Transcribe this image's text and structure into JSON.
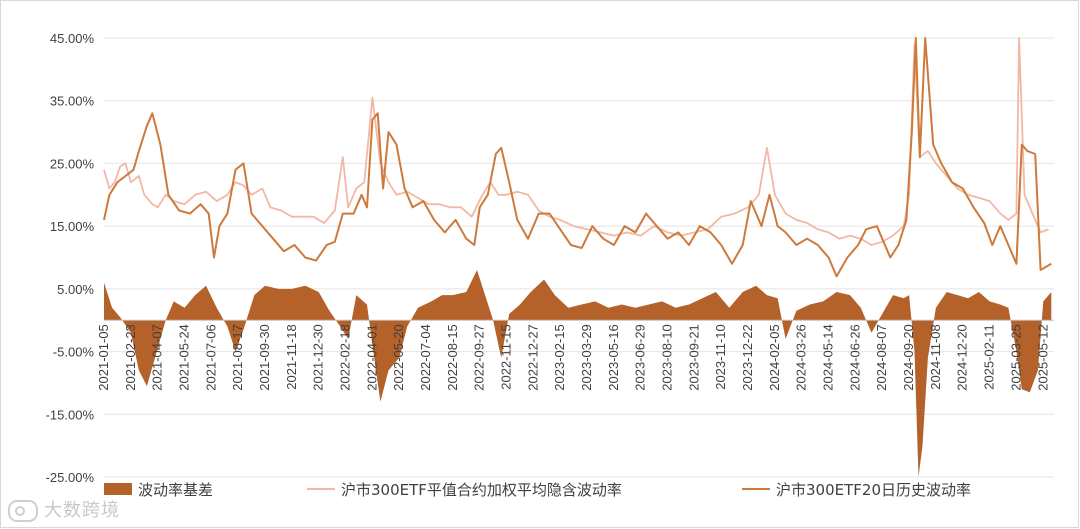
{
  "chart_data": {
    "type": "bar+line",
    "title": "",
    "xlabel": "",
    "ylabel": "",
    "ylim": [
      -0.25,
      0.45
    ],
    "y_ticks": [
      "45.00%",
      "35.00%",
      "25.00%",
      "15.00%",
      "5.00%",
      "-5.00%",
      "-15.00%",
      "-25.00%"
    ],
    "y_tick_values": [
      0.45,
      0.35,
      0.25,
      0.15,
      0.05,
      -0.05,
      -0.15,
      -0.25
    ],
    "x_tick_labels": [
      "2021-01-05",
      "2021-02-23",
      "2021-04-07",
      "2021-05-24",
      "2021-07-06",
      "2021-08-17",
      "2021-09-30",
      "2021-11-18",
      "2021-12-30",
      "2022-02-18",
      "2022-04-01",
      "2022-05-20",
      "2022-07-04",
      "2022-08-15",
      "2022-09-27",
      "2022-11-15",
      "2022-12-27",
      "2023-02-15",
      "2023-03-29",
      "2023-05-16",
      "2023-06-29",
      "2023-08-10",
      "2023-09-21",
      "2023-11-10",
      "2023-12-22",
      "2024-02-05",
      "2024-03-26",
      "2024-05-14",
      "2024-06-26",
      "2024-08-07",
      "2024-09-20",
      "2024-11-08",
      "2024-12-20",
      "2025-02-11",
      "2025-03-25",
      "2025-05-12"
    ],
    "legend_position": "bottom",
    "grid": "horizontal",
    "series": [
      {
        "name": "波动率基差",
        "kind": "area",
        "color": "#b5612a",
        "points": [
          [
            0,
            0.06
          ],
          [
            0.3,
            0.02
          ],
          [
            0.6,
            0.005
          ],
          [
            1,
            -0.02
          ],
          [
            1.3,
            -0.08
          ],
          [
            1.6,
            -0.105
          ],
          [
            1.9,
            -0.06
          ],
          [
            2.3,
            0.0
          ],
          [
            2.6,
            0.03
          ],
          [
            3.0,
            0.02
          ],
          [
            3.4,
            0.04
          ],
          [
            3.8,
            0.055
          ],
          [
            4.2,
            0.02
          ],
          [
            4.6,
            -0.01
          ],
          [
            4.9,
            -0.05
          ],
          [
            5.2,
            -0.015
          ],
          [
            5.6,
            0.04
          ],
          [
            6.0,
            0.055
          ],
          [
            6.5,
            0.05
          ],
          [
            7.0,
            0.05
          ],
          [
            7.5,
            0.055
          ],
          [
            8.0,
            0.045
          ],
          [
            8.4,
            0.015
          ],
          [
            8.8,
            -0.01
          ],
          [
            9.1,
            -0.03
          ],
          [
            9.4,
            0.04
          ],
          [
            9.8,
            0.025
          ],
          [
            10.0,
            -0.04
          ],
          [
            10.3,
            -0.13
          ],
          [
            10.6,
            -0.08
          ],
          [
            11.0,
            -0.06
          ],
          [
            11.3,
            -0.01
          ],
          [
            11.7,
            0.02
          ],
          [
            12.2,
            0.03
          ],
          [
            12.6,
            0.04
          ],
          [
            13.0,
            0.04
          ],
          [
            13.5,
            0.045
          ],
          [
            13.9,
            0.08
          ],
          [
            14.2,
            0.04
          ],
          [
            14.5,
            0.0
          ],
          [
            14.8,
            -0.06
          ],
          [
            15.1,
            0.01
          ],
          [
            15.5,
            0.025
          ],
          [
            15.9,
            0.045
          ],
          [
            16.4,
            0.065
          ],
          [
            16.8,
            0.04
          ],
          [
            17.3,
            0.02
          ],
          [
            17.8,
            0.025
          ],
          [
            18.3,
            0.03
          ],
          [
            18.8,
            0.02
          ],
          [
            19.3,
            0.025
          ],
          [
            19.8,
            0.02
          ],
          [
            20.3,
            0.025
          ],
          [
            20.8,
            0.03
          ],
          [
            21.3,
            0.02
          ],
          [
            21.8,
            0.025
          ],
          [
            22.3,
            0.035
          ],
          [
            22.8,
            0.045
          ],
          [
            23.3,
            0.02
          ],
          [
            23.8,
            0.045
          ],
          [
            24.3,
            0.055
          ],
          [
            24.7,
            0.04
          ],
          [
            25.1,
            0.035
          ],
          [
            25.4,
            -0.03
          ],
          [
            25.8,
            0.015
          ],
          [
            26.3,
            0.025
          ],
          [
            26.8,
            0.03
          ],
          [
            27.3,
            0.045
          ],
          [
            27.8,
            0.04
          ],
          [
            28.2,
            0.02
          ],
          [
            28.6,
            -0.02
          ],
          [
            29.0,
            0.01
          ],
          [
            29.4,
            0.04
          ],
          [
            29.8,
            0.035
          ],
          [
            30.0,
            0.04
          ],
          [
            30.2,
            -0.05
          ],
          [
            30.35,
            -0.25
          ],
          [
            30.5,
            -0.2
          ],
          [
            30.7,
            -0.06
          ],
          [
            31.0,
            0.02
          ],
          [
            31.4,
            0.045
          ],
          [
            31.8,
            0.04
          ],
          [
            32.2,
            0.035
          ],
          [
            32.6,
            0.045
          ],
          [
            33.0,
            0.03
          ],
          [
            33.4,
            0.025
          ],
          [
            33.7,
            0.02
          ],
          [
            34.0,
            -0.05
          ],
          [
            34.2,
            -0.11
          ],
          [
            34.5,
            -0.115
          ],
          [
            34.8,
            -0.08
          ],
          [
            35.0,
            0.03
          ],
          [
            35.3,
            0.045
          ]
        ]
      },
      {
        "name": "沪市300ETF平值合约加权平均隐含波动率",
        "kind": "line",
        "color": "#f2b8a4",
        "points": [
          [
            0,
            0.24
          ],
          [
            0.2,
            0.21
          ],
          [
            0.4,
            0.22
          ],
          [
            0.6,
            0.245
          ],
          [
            0.8,
            0.25
          ],
          [
            1.0,
            0.22
          ],
          [
            1.3,
            0.23
          ],
          [
            1.5,
            0.2
          ],
          [
            1.8,
            0.185
          ],
          [
            2.0,
            0.18
          ],
          [
            2.3,
            0.2
          ],
          [
            2.6,
            0.19
          ],
          [
            3.0,
            0.185
          ],
          [
            3.4,
            0.2
          ],
          [
            3.8,
            0.205
          ],
          [
            4.2,
            0.19
          ],
          [
            4.6,
            0.2
          ],
          [
            4.9,
            0.22
          ],
          [
            5.2,
            0.215
          ],
          [
            5.5,
            0.2
          ],
          [
            5.9,
            0.21
          ],
          [
            6.2,
            0.18
          ],
          [
            6.6,
            0.175
          ],
          [
            7.0,
            0.165
          ],
          [
            7.4,
            0.165
          ],
          [
            7.8,
            0.165
          ],
          [
            8.2,
            0.155
          ],
          [
            8.6,
            0.175
          ],
          [
            8.9,
            0.26
          ],
          [
            9.1,
            0.18
          ],
          [
            9.4,
            0.21
          ],
          [
            9.7,
            0.22
          ],
          [
            10.0,
            0.355
          ],
          [
            10.3,
            0.25
          ],
          [
            10.6,
            0.22
          ],
          [
            10.9,
            0.2
          ],
          [
            11.3,
            0.205
          ],
          [
            11.7,
            0.195
          ],
          [
            12.1,
            0.185
          ],
          [
            12.5,
            0.185
          ],
          [
            12.9,
            0.18
          ],
          [
            13.3,
            0.18
          ],
          [
            13.7,
            0.165
          ],
          [
            14.1,
            0.2
          ],
          [
            14.4,
            0.22
          ],
          [
            14.7,
            0.2
          ],
          [
            15.0,
            0.2
          ],
          [
            15.4,
            0.205
          ],
          [
            15.8,
            0.2
          ],
          [
            16.2,
            0.175
          ],
          [
            16.6,
            0.165
          ],
          [
            17.0,
            0.16
          ],
          [
            17.5,
            0.15
          ],
          [
            18.0,
            0.145
          ],
          [
            18.5,
            0.14
          ],
          [
            19.0,
            0.135
          ],
          [
            19.5,
            0.14
          ],
          [
            20.0,
            0.135
          ],
          [
            20.5,
            0.15
          ],
          [
            21.0,
            0.14
          ],
          [
            21.5,
            0.135
          ],
          [
            22.0,
            0.14
          ],
          [
            22.5,
            0.145
          ],
          [
            23.0,
            0.165
          ],
          [
            23.5,
            0.17
          ],
          [
            24.0,
            0.18
          ],
          [
            24.4,
            0.2
          ],
          [
            24.7,
            0.275
          ],
          [
            25.0,
            0.2
          ],
          [
            25.4,
            0.17
          ],
          [
            25.8,
            0.16
          ],
          [
            26.2,
            0.155
          ],
          [
            26.6,
            0.145
          ],
          [
            27.0,
            0.14
          ],
          [
            27.4,
            0.13
          ],
          [
            27.8,
            0.135
          ],
          [
            28.2,
            0.13
          ],
          [
            28.6,
            0.12
          ],
          [
            29.0,
            0.125
          ],
          [
            29.4,
            0.135
          ],
          [
            29.8,
            0.15
          ],
          [
            30.0,
            0.2
          ],
          [
            30.2,
            0.44
          ],
          [
            30.4,
            0.26
          ],
          [
            30.7,
            0.27
          ],
          [
            31.0,
            0.25
          ],
          [
            31.4,
            0.23
          ],
          [
            31.8,
            0.21
          ],
          [
            32.2,
            0.2
          ],
          [
            32.6,
            0.195
          ],
          [
            33.0,
            0.19
          ],
          [
            33.4,
            0.17
          ],
          [
            33.7,
            0.16
          ],
          [
            34.0,
            0.17
          ],
          [
            34.1,
            0.45
          ],
          [
            34.3,
            0.2
          ],
          [
            34.6,
            0.17
          ],
          [
            34.9,
            0.14
          ],
          [
            35.2,
            0.145
          ]
        ]
      },
      {
        "name": "沪市300ETF20日历史波动率",
        "kind": "line",
        "color": "#cd7a3c",
        "points": [
          [
            0,
            0.16
          ],
          [
            0.2,
            0.2
          ],
          [
            0.5,
            0.22
          ],
          [
            0.8,
            0.23
          ],
          [
            1.1,
            0.24
          ],
          [
            1.3,
            0.27
          ],
          [
            1.6,
            0.31
          ],
          [
            1.8,
            0.33
          ],
          [
            2.1,
            0.28
          ],
          [
            2.4,
            0.2
          ],
          [
            2.8,
            0.175
          ],
          [
            3.2,
            0.17
          ],
          [
            3.6,
            0.185
          ],
          [
            3.9,
            0.17
          ],
          [
            4.1,
            0.1
          ],
          [
            4.3,
            0.15
          ],
          [
            4.6,
            0.17
          ],
          [
            4.9,
            0.24
          ],
          [
            5.2,
            0.25
          ],
          [
            5.5,
            0.17
          ],
          [
            5.9,
            0.15
          ],
          [
            6.3,
            0.13
          ],
          [
            6.7,
            0.11
          ],
          [
            7.1,
            0.12
          ],
          [
            7.5,
            0.1
          ],
          [
            7.9,
            0.095
          ],
          [
            8.3,
            0.12
          ],
          [
            8.6,
            0.125
          ],
          [
            8.9,
            0.17
          ],
          [
            9.3,
            0.17
          ],
          [
            9.6,
            0.2
          ],
          [
            9.8,
            0.18
          ],
          [
            10.0,
            0.32
          ],
          [
            10.2,
            0.33
          ],
          [
            10.4,
            0.21
          ],
          [
            10.6,
            0.3
          ],
          [
            10.9,
            0.28
          ],
          [
            11.2,
            0.21
          ],
          [
            11.5,
            0.18
          ],
          [
            11.9,
            0.19
          ],
          [
            12.3,
            0.16
          ],
          [
            12.7,
            0.14
          ],
          [
            13.1,
            0.16
          ],
          [
            13.5,
            0.13
          ],
          [
            13.8,
            0.12
          ],
          [
            14.0,
            0.18
          ],
          [
            14.3,
            0.2
          ],
          [
            14.6,
            0.265
          ],
          [
            14.8,
            0.275
          ],
          [
            15.1,
            0.22
          ],
          [
            15.4,
            0.16
          ],
          [
            15.8,
            0.13
          ],
          [
            16.2,
            0.17
          ],
          [
            16.6,
            0.17
          ],
          [
            17.0,
            0.145
          ],
          [
            17.4,
            0.12
          ],
          [
            17.8,
            0.115
          ],
          [
            18.2,
            0.15
          ],
          [
            18.6,
            0.13
          ],
          [
            19.0,
            0.12
          ],
          [
            19.4,
            0.15
          ],
          [
            19.8,
            0.14
          ],
          [
            20.2,
            0.17
          ],
          [
            20.6,
            0.15
          ],
          [
            21.0,
            0.13
          ],
          [
            21.4,
            0.14
          ],
          [
            21.8,
            0.12
          ],
          [
            22.2,
            0.15
          ],
          [
            22.6,
            0.14
          ],
          [
            23.0,
            0.12
          ],
          [
            23.4,
            0.09
          ],
          [
            23.8,
            0.12
          ],
          [
            24.1,
            0.19
          ],
          [
            24.5,
            0.15
          ],
          [
            24.8,
            0.2
          ],
          [
            25.1,
            0.15
          ],
          [
            25.4,
            0.14
          ],
          [
            25.8,
            0.12
          ],
          [
            26.2,
            0.13
          ],
          [
            26.6,
            0.12
          ],
          [
            27.0,
            0.1
          ],
          [
            27.3,
            0.07
          ],
          [
            27.7,
            0.1
          ],
          [
            28.1,
            0.12
          ],
          [
            28.4,
            0.145
          ],
          [
            28.8,
            0.15
          ],
          [
            29.0,
            0.13
          ],
          [
            29.3,
            0.1
          ],
          [
            29.6,
            0.12
          ],
          [
            29.9,
            0.16
          ],
          [
            30.1,
            0.3
          ],
          [
            30.25,
            0.45
          ],
          [
            30.4,
            0.26
          ],
          [
            30.6,
            0.45
          ],
          [
            30.9,
            0.28
          ],
          [
            31.2,
            0.25
          ],
          [
            31.6,
            0.22
          ],
          [
            32.0,
            0.21
          ],
          [
            32.4,
            0.18
          ],
          [
            32.8,
            0.155
          ],
          [
            33.1,
            0.12
          ],
          [
            33.4,
            0.15
          ],
          [
            33.7,
            0.12
          ],
          [
            34.0,
            0.09
          ],
          [
            34.2,
            0.28
          ],
          [
            34.4,
            0.27
          ],
          [
            34.7,
            0.265
          ],
          [
            34.9,
            0.08
          ],
          [
            35.3,
            0.09
          ]
        ]
      }
    ]
  },
  "watermark": {
    "text": "大数跨境"
  }
}
